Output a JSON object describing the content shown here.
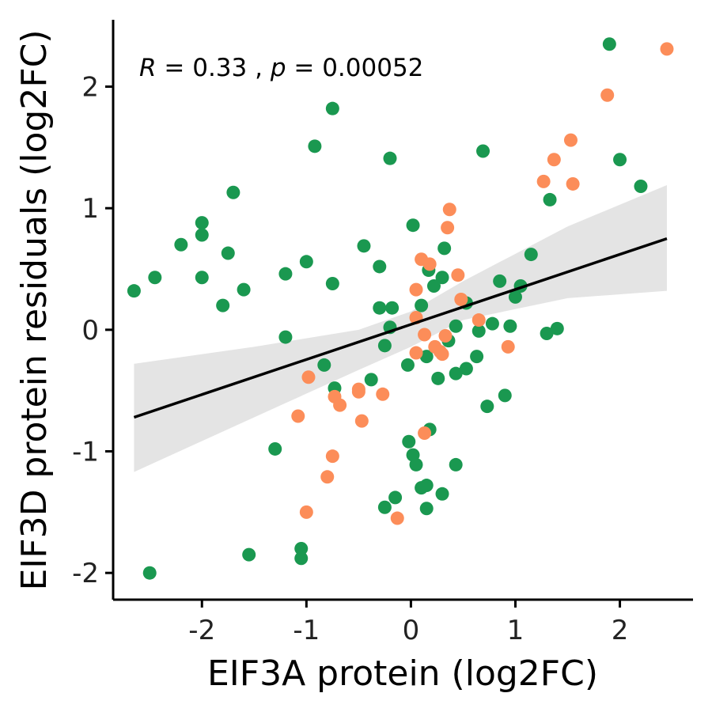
{
  "chart_data": {
    "type": "scatter",
    "xlabel": "EIF3A protein (log2FC)",
    "ylabel": "EIF3D protein residuals (log2FC)",
    "xlim": [
      -2.85,
      2.7
    ],
    "ylim": [
      -2.22,
      2.55
    ],
    "xticks": [
      -2,
      -1,
      0,
      1,
      2
    ],
    "yticks": [
      -2,
      -1,
      0,
      1,
      2
    ],
    "annotation": {
      "r_label": "R",
      "r_text": " = 0.33 , ",
      "p_label": "p",
      "p_text": " = 0.00052"
    },
    "grid": false,
    "legend": "none",
    "colors": {
      "green": "#1a9850",
      "orange": "#fc8d59",
      "fit_line": "#000000",
      "ci_band": "#d9d9d9"
    },
    "regression": {
      "x": [
        -2.65,
        2.45
      ],
      "y": [
        -0.72,
        0.75
      ]
    },
    "confidence_band": {
      "x": [
        -2.65,
        -1.5,
        -0.5,
        0.0,
        0.5,
        1.5,
        2.45
      ],
      "lower": [
        -1.17,
        -0.72,
        -0.33,
        -0.14,
        0.08,
        0.26,
        0.32
      ],
      "upper": [
        -0.28,
        -0.14,
        0.0,
        0.15,
        0.4,
        0.85,
        1.19
      ]
    },
    "series": [
      {
        "color": "green",
        "points": [
          [
            -2.65,
            0.32
          ],
          [
            -2.45,
            0.43
          ],
          [
            -2.2,
            0.7
          ],
          [
            -2.0,
            0.88
          ],
          [
            -2.0,
            0.78
          ],
          [
            -2.0,
            0.43
          ],
          [
            -1.8,
            0.2
          ],
          [
            -1.75,
            0.63
          ],
          [
            -1.7,
            1.13
          ],
          [
            -1.6,
            0.33
          ],
          [
            -2.5,
            -2.0
          ],
          [
            -1.55,
            -1.85
          ],
          [
            -1.3,
            -0.98
          ],
          [
            -1.2,
            0.46
          ],
          [
            -1.2,
            -0.06
          ],
          [
            -1.05,
            -1.8
          ],
          [
            -1.05,
            -1.88
          ],
          [
            -1.0,
            0.56
          ],
          [
            -0.92,
            1.51
          ],
          [
            -0.83,
            -0.29
          ],
          [
            -0.75,
            1.82
          ],
          [
            -0.75,
            0.38
          ],
          [
            -0.73,
            -0.48
          ],
          [
            -0.45,
            0.69
          ],
          [
            -0.38,
            -0.41
          ],
          [
            -0.3,
            0.52
          ],
          [
            -0.3,
            0.18
          ],
          [
            -0.25,
            -0.13
          ],
          [
            -0.25,
            -1.46
          ],
          [
            -0.2,
            1.41
          ],
          [
            -0.2,
            0.02
          ],
          [
            -0.18,
            0.18
          ],
          [
            -0.15,
            -1.38
          ],
          [
            -0.03,
            -0.29
          ],
          [
            0.02,
            0.86
          ],
          [
            -0.02,
            -0.92
          ],
          [
            0.02,
            -1.03
          ],
          [
            0.05,
            -1.11
          ],
          [
            0.1,
            0.2
          ],
          [
            0.1,
            -1.3
          ],
          [
            0.15,
            -1.47
          ],
          [
            0.15,
            -1.28
          ],
          [
            0.15,
            -0.22
          ],
          [
            0.17,
            0.49
          ],
          [
            0.18,
            -0.82
          ],
          [
            0.22,
            0.36
          ],
          [
            0.26,
            -0.4
          ],
          [
            0.3,
            0.43
          ],
          [
            0.32,
            0.67
          ],
          [
            0.3,
            -1.35
          ],
          [
            0.36,
            -0.09
          ],
          [
            0.43,
            0.03
          ],
          [
            0.43,
            -0.36
          ],
          [
            0.43,
            -1.11
          ],
          [
            0.53,
            0.22
          ],
          [
            0.53,
            -0.32
          ],
          [
            0.63,
            -0.22
          ],
          [
            0.65,
            -0.01
          ],
          [
            0.69,
            1.47
          ],
          [
            0.73,
            -0.63
          ],
          [
            0.78,
            0.05
          ],
          [
            0.85,
            0.4
          ],
          [
            0.9,
            -0.54
          ],
          [
            0.95,
            0.03
          ],
          [
            1.0,
            0.27
          ],
          [
            1.05,
            0.36
          ],
          [
            1.15,
            0.62
          ],
          [
            1.3,
            -0.03
          ],
          [
            1.33,
            1.07
          ],
          [
            1.4,
            0.01
          ],
          [
            1.9,
            2.35
          ],
          [
            2.0,
            1.4
          ],
          [
            2.2,
            1.18
          ]
        ]
      },
      {
        "color": "orange",
        "points": [
          [
            -0.98,
            -0.39
          ],
          [
            -1.08,
            -0.71
          ],
          [
            -1.0,
            -1.5
          ],
          [
            -0.73,
            -0.55
          ],
          [
            -0.68,
            -0.62
          ],
          [
            -0.75,
            -1.04
          ],
          [
            -0.8,
            -1.21
          ],
          [
            -0.5,
            -0.51
          ],
          [
            -0.5,
            -0.49
          ],
          [
            -0.47,
            -0.75
          ],
          [
            -0.27,
            -0.53
          ],
          [
            -0.13,
            -1.55
          ],
          [
            0.05,
            0.33
          ],
          [
            0.05,
            0.1
          ],
          [
            0.05,
            -0.19
          ],
          [
            0.1,
            0.58
          ],
          [
            0.13,
            -0.04
          ],
          [
            0.13,
            -0.85
          ],
          [
            0.18,
            0.54
          ],
          [
            0.23,
            -0.14
          ],
          [
            0.28,
            -0.18
          ],
          [
            0.3,
            -0.2
          ],
          [
            0.33,
            -0.05
          ],
          [
            0.35,
            0.84
          ],
          [
            0.37,
            0.99
          ],
          [
            0.45,
            0.45
          ],
          [
            0.48,
            0.25
          ],
          [
            0.65,
            0.08
          ],
          [
            0.93,
            -0.14
          ],
          [
            1.27,
            1.22
          ],
          [
            1.37,
            1.4
          ],
          [
            1.53,
            1.56
          ],
          [
            1.55,
            1.2
          ],
          [
            1.88,
            1.93
          ],
          [
            2.45,
            2.31
          ]
        ]
      }
    ]
  }
}
